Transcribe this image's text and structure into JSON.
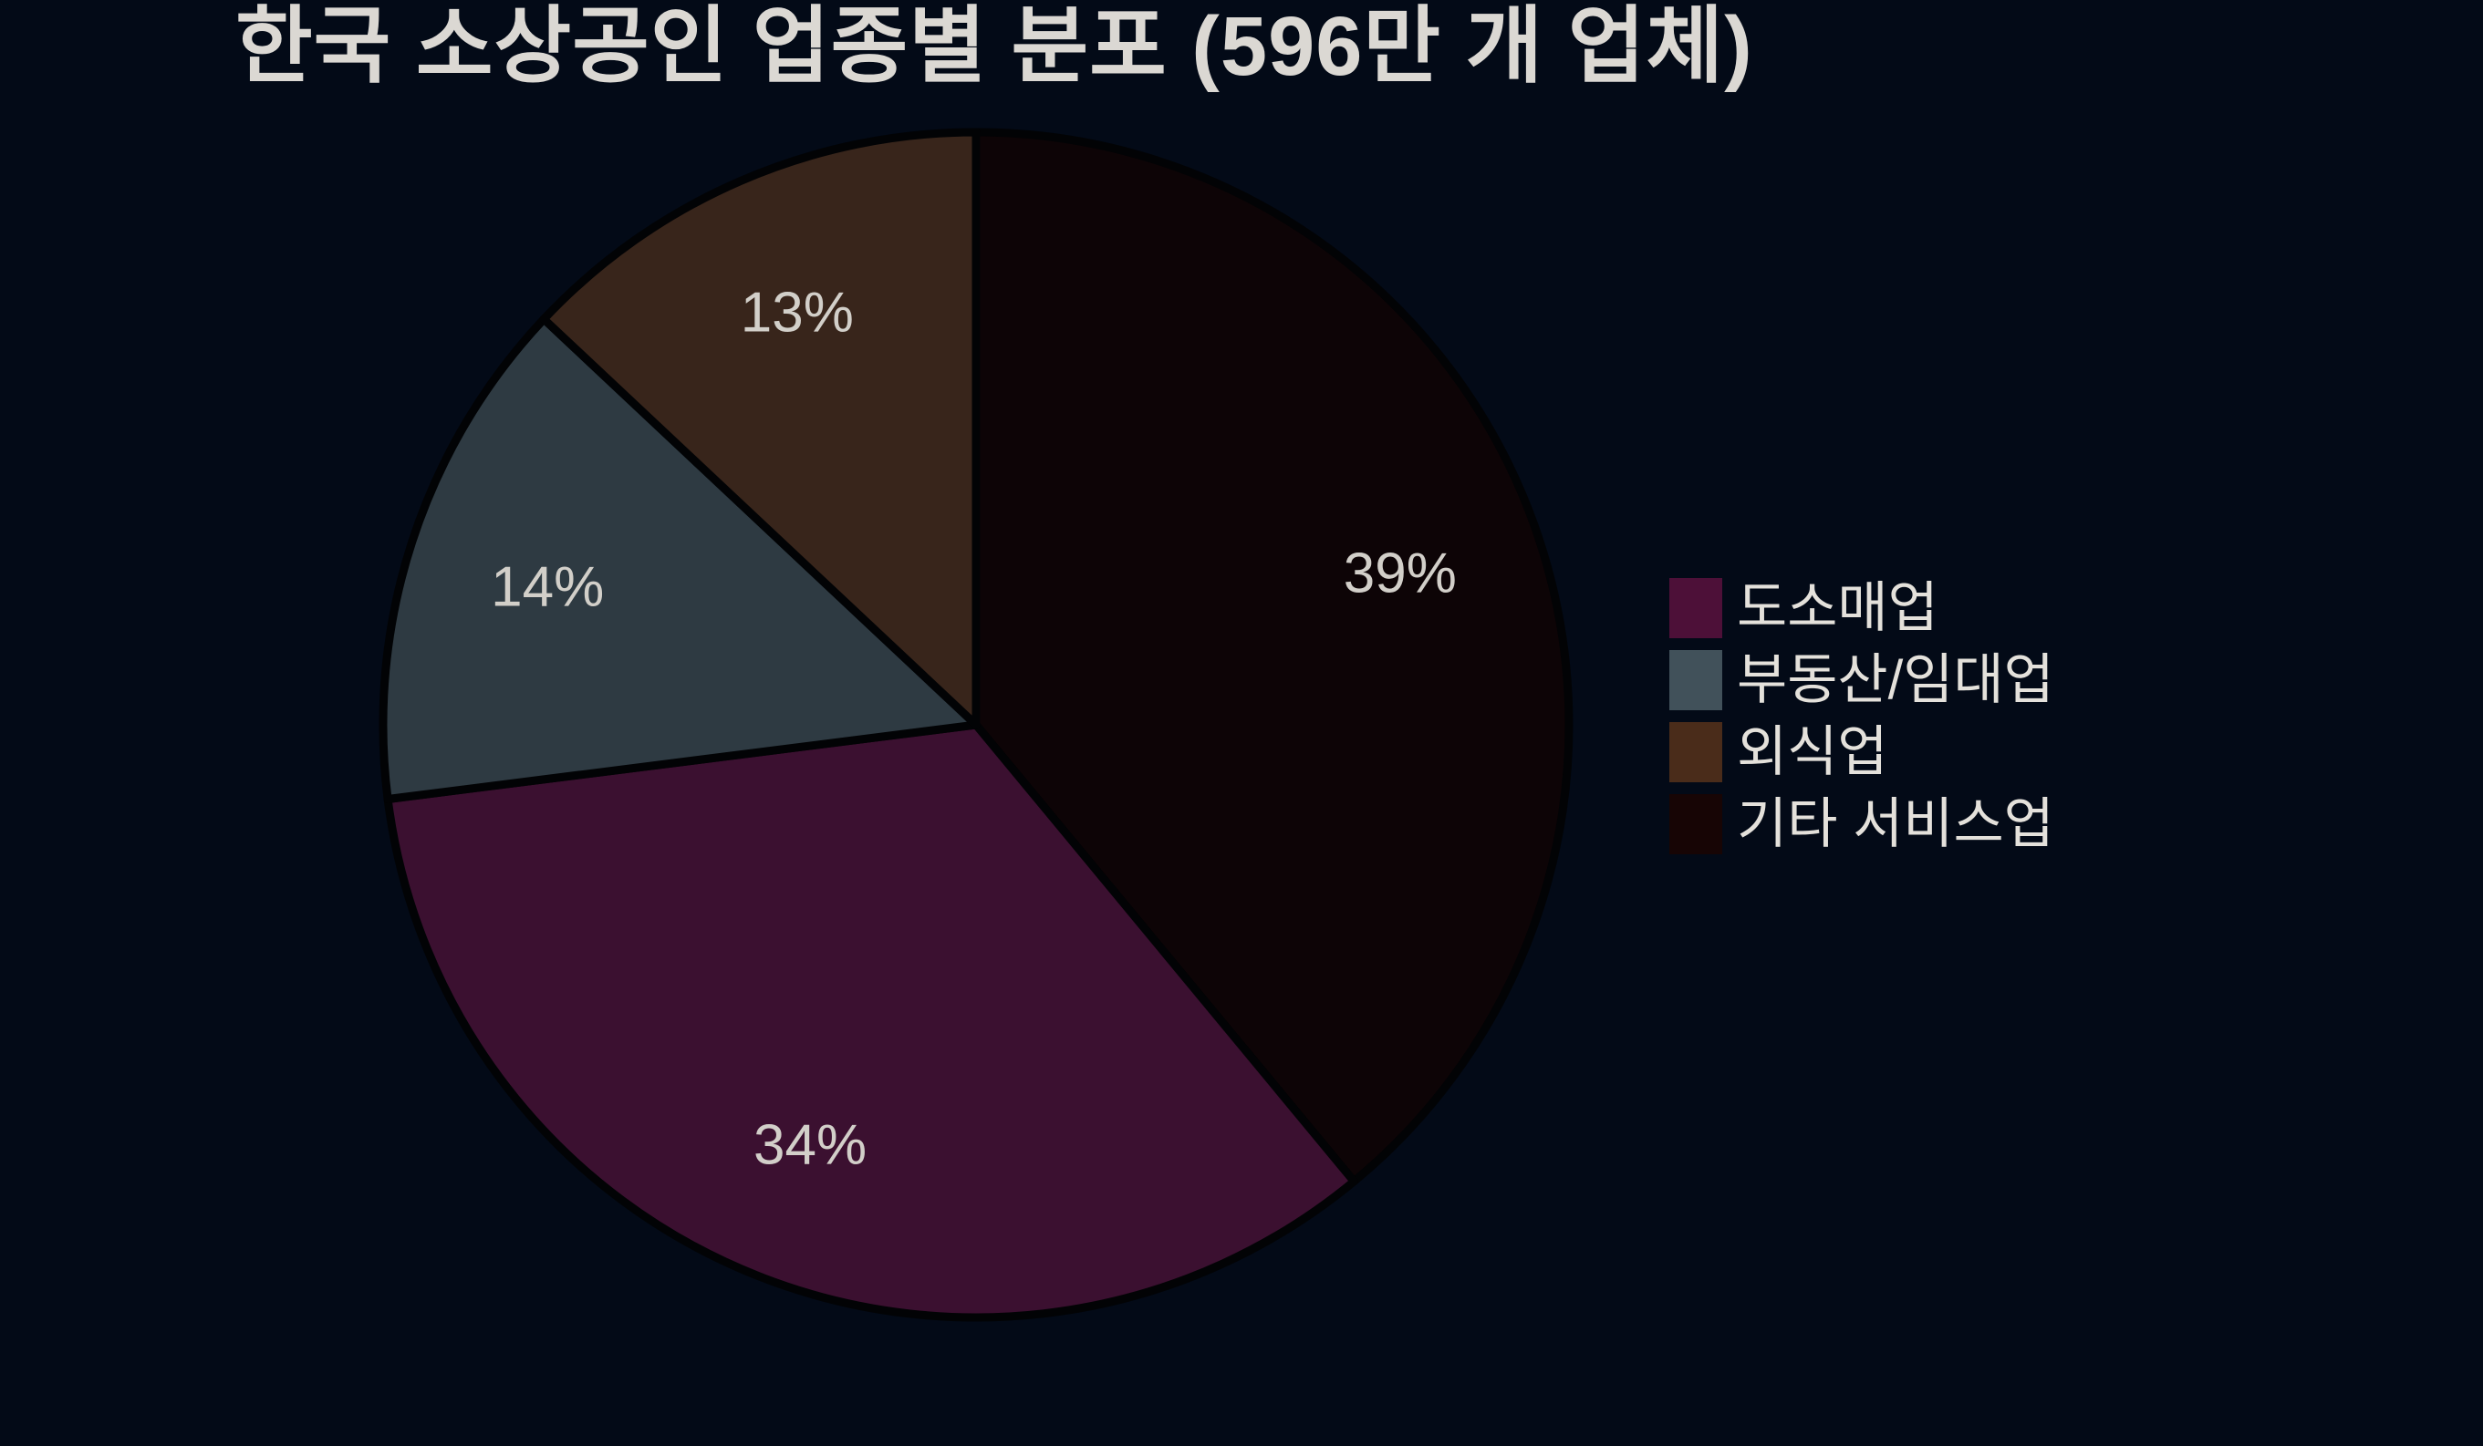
{
  "page": {
    "background": "#030a17"
  },
  "chart_data": {
    "type": "pie",
    "title": "한국 소상공인 업종별 분포 (596만 개 업체)",
    "segments": [
      {
        "label": "도소매업",
        "value": 34,
        "pct_label": "34%",
        "color": "#3b1030",
        "legend_color": "#4d1038"
      },
      {
        "label": "부동산/임대업",
        "value": 14,
        "pct_label": "14%",
        "color": "#2e3a42",
        "legend_color": "#41515a"
      },
      {
        "label": "외식업",
        "value": 13,
        "pct_label": "13%",
        "color": "#38251b",
        "legend_color": "#4a2c1a"
      },
      {
        "label": "기타 서비스업",
        "value": 39,
        "pct_label": "39%",
        "color": "#0d0406",
        "legend_color": "#170505"
      }
    ],
    "draw_order": [
      3,
      0,
      1,
      2
    ],
    "start_angle_deg": 0,
    "direction": "clockwise",
    "legend_position": "center-right",
    "grid": false,
    "title_color": "#dbd8d3",
    "label_color": "#d2cfc9",
    "legend_text_color": "#e4e1db",
    "wedge_edge_color": "#020305"
  }
}
